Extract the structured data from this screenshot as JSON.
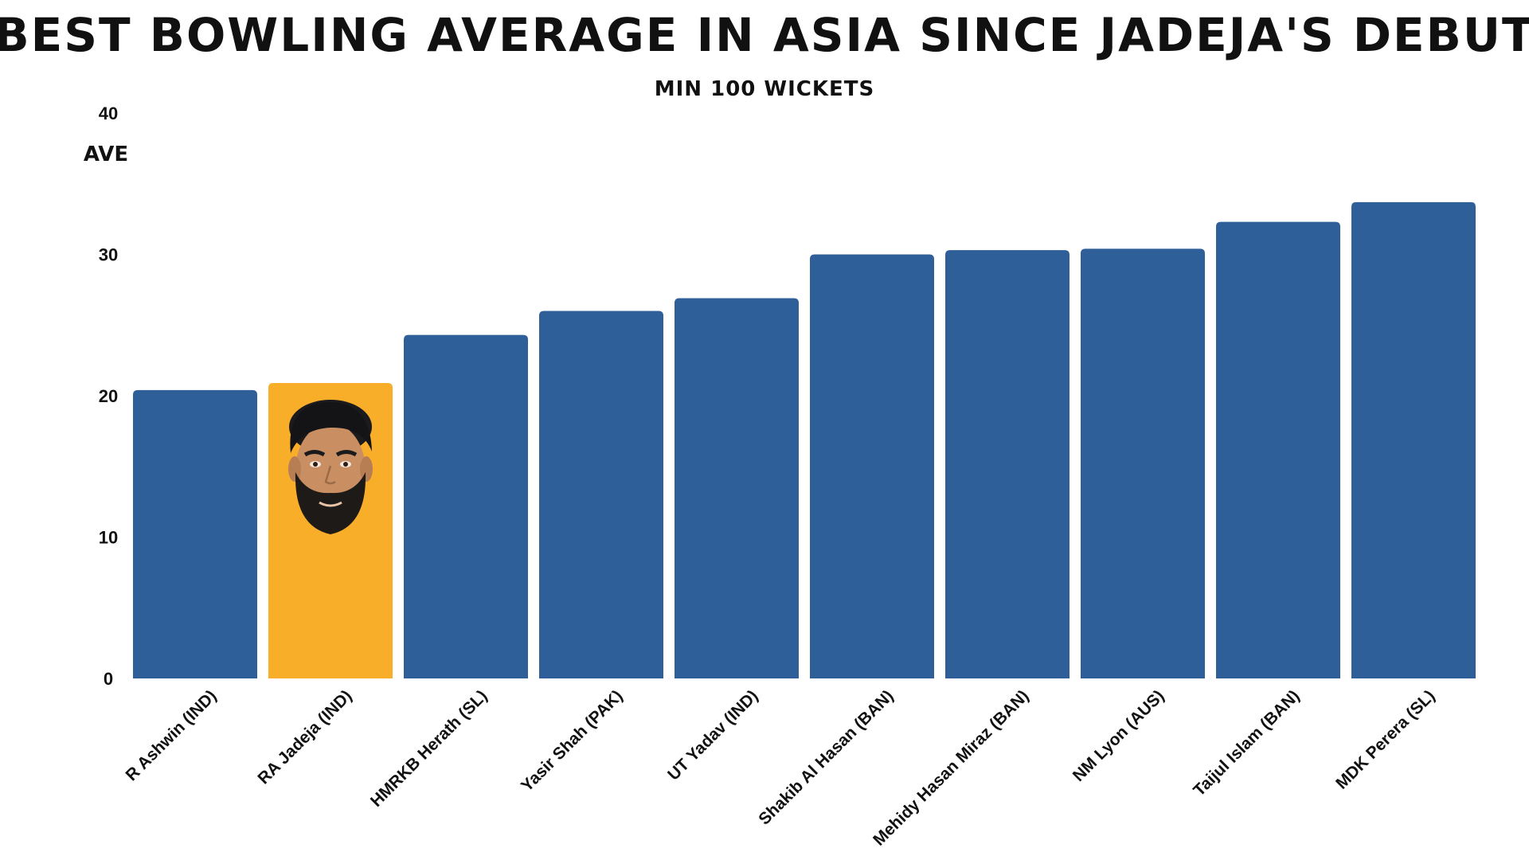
{
  "chart_data": {
    "type": "bar",
    "title": "BEST BOWLING AVERAGE IN ASIA SINCE JADEJA'S DEBUT",
    "subtitle": "MIN 100 WICKETS",
    "xlabel": "",
    "ylabel": "AVE",
    "ylim": [
      0,
      40
    ],
    "yticks": [
      "0",
      "10",
      "20",
      "30",
      "40"
    ],
    "grid": false,
    "categories": [
      "R Ashwin (IND)",
      "RA Jadeja (IND)",
      "HMRKB Herath (SL)",
      "Yasir Shah (PAK)",
      "UT Yadav (IND)",
      "Shakib Al Hasan (BAN)",
      "Mehidy Hasan Miraz (BAN)",
      "NM Lyon (AUS)",
      "Taijul Islam (BAN)",
      "MDK Perera (SL)"
    ],
    "values": [
      20.4,
      20.9,
      24.3,
      26.0,
      26.9,
      30.0,
      30.3,
      30.4,
      32.3,
      33.7
    ],
    "highlight_index": 1,
    "colors": {
      "bar": "#2f5f98",
      "highlight": "#f9ae2a",
      "text": "#111111"
    },
    "highlight_image": "player-face-portrait"
  }
}
